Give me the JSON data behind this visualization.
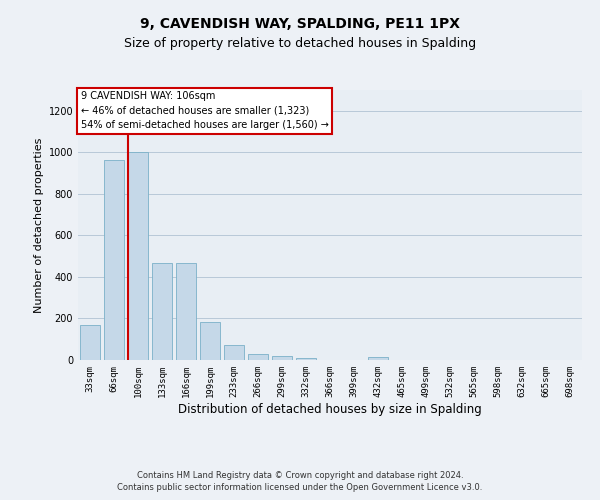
{
  "title_line1": "9, CAVENDISH WAY, SPALDING, PE11 1PX",
  "title_line2": "Size of property relative to detached houses in Spalding",
  "xlabel": "Distribution of detached houses by size in Spalding",
  "ylabel": "Number of detached properties",
  "footer_line1": "Contains HM Land Registry data © Crown copyright and database right 2024.",
  "footer_line2": "Contains public sector information licensed under the Open Government Licence v3.0.",
  "bin_labels": [
    "33sqm",
    "66sqm",
    "100sqm",
    "133sqm",
    "166sqm",
    "199sqm",
    "233sqm",
    "266sqm",
    "299sqm",
    "332sqm",
    "366sqm",
    "399sqm",
    "432sqm",
    "465sqm",
    "499sqm",
    "532sqm",
    "565sqm",
    "598sqm",
    "632sqm",
    "665sqm",
    "698sqm"
  ],
  "bar_values": [
    170,
    965,
    1000,
    465,
    465,
    185,
    70,
    28,
    20,
    12,
    0,
    0,
    14,
    0,
    0,
    0,
    0,
    0,
    0,
    0,
    0
  ],
  "bar_color": "#c5d8e8",
  "bar_edge_color": "#7ab0c8",
  "annotation_text": "9 CAVENDISH WAY: 106sqm\n← 46% of detached houses are smaller (1,323)\n54% of semi-detached houses are larger (1,560) →",
  "red_line_color": "#cc0000",
  "red_line_x": 1.58,
  "ylim": [
    0,
    1300
  ],
  "yticks": [
    0,
    200,
    400,
    600,
    800,
    1000,
    1200
  ],
  "grid_color": "#b8c8d8",
  "bg_color": "#e8eef4",
  "fig_bg_color": "#edf1f6",
  "title_fontsize": 10,
  "subtitle_fontsize": 9,
  "axis_label_fontsize": 8,
  "tick_fontsize": 6.5,
  "annot_fontsize": 7,
  "footer_fontsize": 6
}
